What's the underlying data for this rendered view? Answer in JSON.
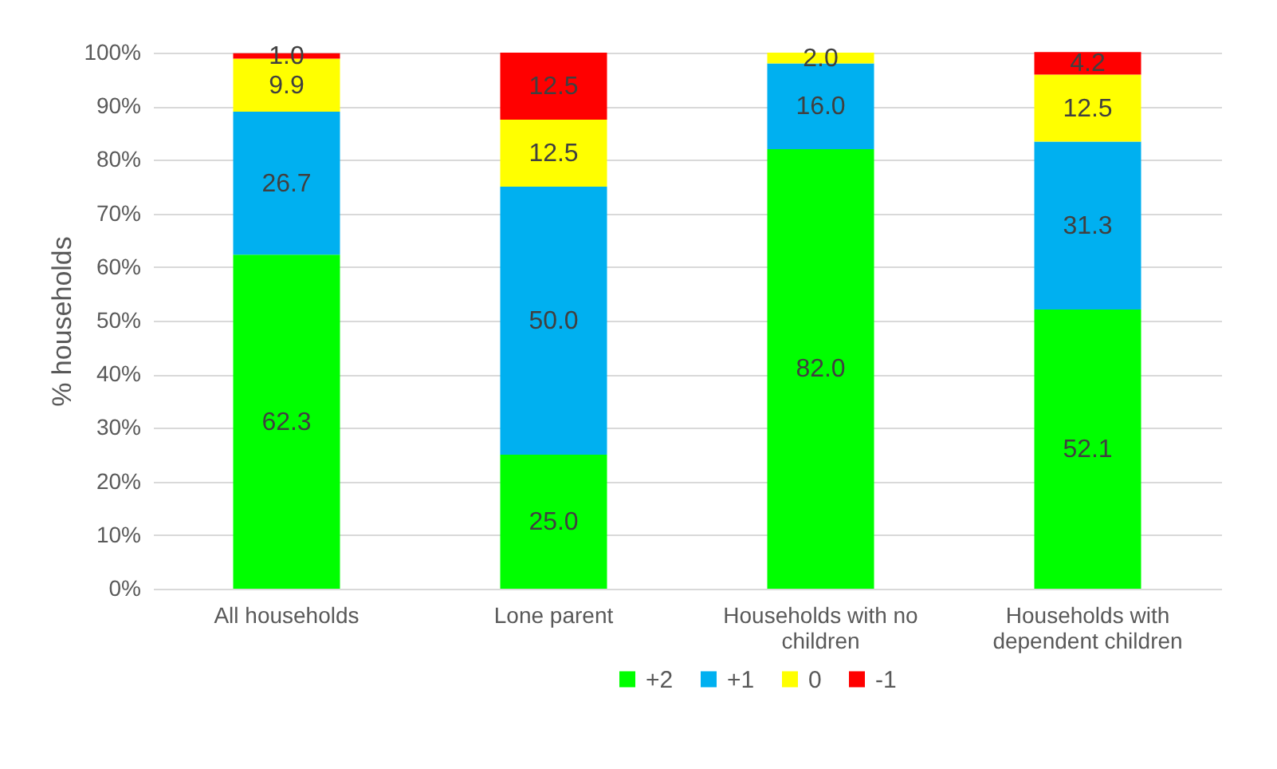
{
  "chart_data": {
    "type": "bar",
    "stacked": true,
    "ylabel": "% households",
    "categories": [
      "All households",
      "Lone parent",
      "Households with no children",
      "Households with dependent children"
    ],
    "series": [
      {
        "name": "+2",
        "color": "#00ff00",
        "values": [
          62.3,
          25.0,
          82.0,
          52.1
        ],
        "value_labels": [
          "62.3",
          "25.0",
          "82.0",
          "52.1"
        ]
      },
      {
        "name": "+1",
        "color": "#00b0f0",
        "values": [
          26.7,
          50.0,
          16.0,
          31.3
        ],
        "value_labels": [
          "26.7",
          "50.0",
          "16.0",
          "31.3"
        ]
      },
      {
        "name": "0",
        "color": "#ffff00",
        "values": [
          9.9,
          12.5,
          2.0,
          12.5
        ],
        "value_labels": [
          "9.9",
          "12.5",
          "2.0",
          "12.5"
        ]
      },
      {
        "name": "-1",
        "color": "#ff0000",
        "values": [
          1.0,
          12.5,
          null,
          4.2
        ],
        "value_labels": [
          "1.0",
          "12.5",
          null,
          "4.2"
        ]
      }
    ],
    "ylim": [
      0,
      100
    ],
    "yticks": [
      {
        "value": 0,
        "label": "0%"
      },
      {
        "value": 10,
        "label": "10%"
      },
      {
        "value": 20,
        "label": "20%"
      },
      {
        "value": 30,
        "label": "30%"
      },
      {
        "value": 40,
        "label": "40%"
      },
      {
        "value": 50,
        "label": "50%"
      },
      {
        "value": 60,
        "label": "60%"
      },
      {
        "value": 70,
        "label": "70%"
      },
      {
        "value": 80,
        "label": "80%"
      },
      {
        "value": 90,
        "label": "90%"
      },
      {
        "value": 100,
        "label": "100%"
      }
    ],
    "grid": "y",
    "legend": "bottom"
  }
}
